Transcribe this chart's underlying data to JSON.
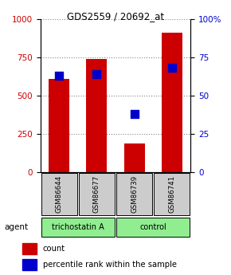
{
  "title": "GDS2559 / 20692_at",
  "samples": [
    "GSM86644",
    "GSM86677",
    "GSM86739",
    "GSM86741"
  ],
  "counts": [
    610,
    740,
    185,
    910
  ],
  "percentiles": [
    63,
    64,
    38,
    68
  ],
  "groups": [
    "trichostatin A",
    "trichostatin A",
    "control",
    "control"
  ],
  "bar_color": "#CC0000",
  "dot_color": "#0000CC",
  "ylim_left": [
    0,
    1000
  ],
  "ylim_right": [
    0,
    100
  ],
  "yticks_left": [
    0,
    250,
    500,
    750,
    1000
  ],
  "yticks_right": [
    0,
    25,
    50,
    75,
    100
  ],
  "ytick_right_labels": [
    "0",
    "25",
    "50",
    "75",
    "100%"
  ],
  "ylabel_left_color": "#CC0000",
  "ylabel_right_color": "#0000CC",
  "sample_box_color": "#CCCCCC",
  "group_box_color": "#90EE90",
  "agent_label": "agent",
  "legend_count_label": "count",
  "legend_pct_label": "percentile rank within the sample",
  "bar_width": 0.55
}
